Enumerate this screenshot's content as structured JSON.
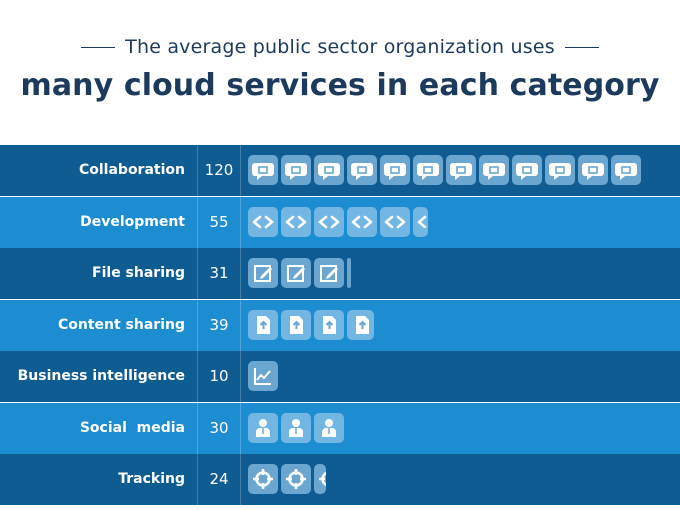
{
  "header": {
    "subtitle": "The average public sector organization uses",
    "title": "many cloud services in each category"
  },
  "colors": {
    "row_dark": "#0e5c91",
    "row_light": "#1d8dd2",
    "title": "#1b3a5c",
    "tile_dark": "#6aa6cf",
    "tile_light": "#72b6e3"
  },
  "chart_data": {
    "type": "bar",
    "title": "many cloud services in each category",
    "categories": [
      "Collaboration",
      "Development",
      "File sharing",
      "Content sharing",
      "Business intelligence",
      "Social  media",
      "Tracking"
    ],
    "values": [
      120,
      55,
      31,
      39,
      10,
      30,
      24
    ],
    "icons": [
      "chat-bubble-icon",
      "code-brackets-icon",
      "edit-document-icon",
      "upload-document-icon",
      "line-chart-icon",
      "person-icon",
      "target-icon"
    ],
    "units_per_icon": 10,
    "xlabel": "",
    "ylabel": ""
  }
}
